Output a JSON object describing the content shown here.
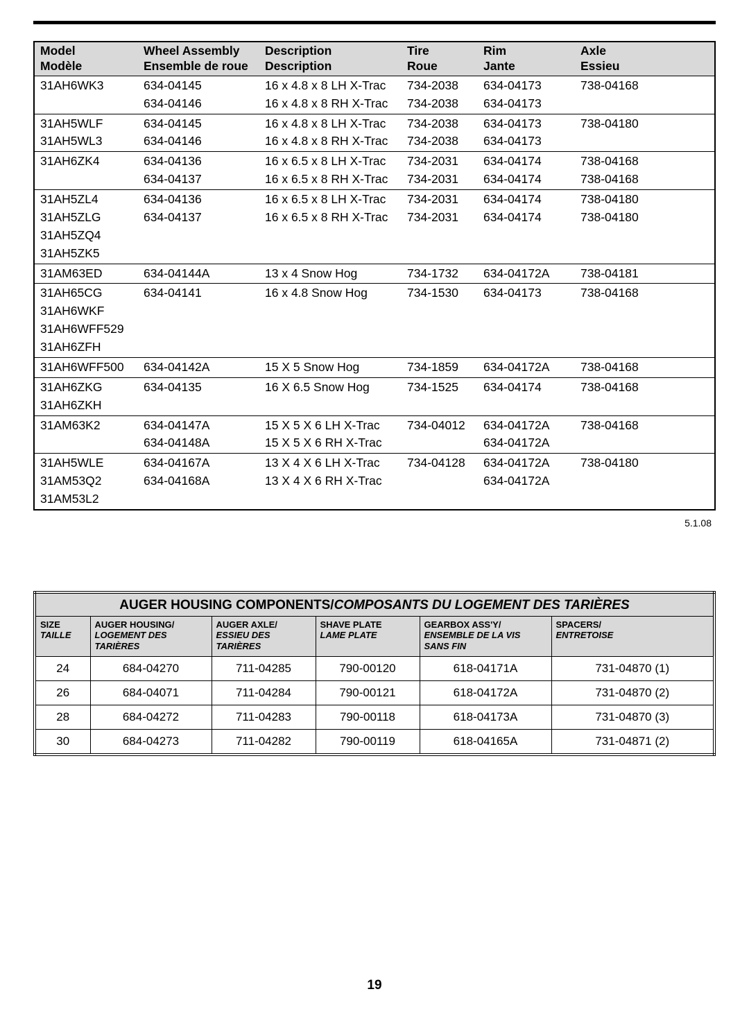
{
  "page_number": "19",
  "date_note": "5.1.08",
  "table1": {
    "headers": [
      {
        "en": "Model",
        "fr": "Modèle"
      },
      {
        "en": "Wheel Assembly",
        "fr": "Ensemble de roue"
      },
      {
        "en": "Description",
        "fr": "Description"
      },
      {
        "en": "Tire",
        "fr": "Roue"
      },
      {
        "en": "Rim",
        "fr": "Jante"
      },
      {
        "en": "Axle",
        "fr": "Essieu"
      }
    ],
    "groups": [
      {
        "rows": [
          {
            "model": "31AH6WK3",
            "wa": "634-04145",
            "desc": "16 x 4.8 x 8 LH X-Trac",
            "tire": "734-2038",
            "rim": "634-04173",
            "axle": "738-04168"
          },
          {
            "model": "",
            "wa": "634-04146",
            "desc": "16 x 4.8 x 8 RH X-Trac",
            "tire": "734-2038",
            "rim": "634-04173",
            "axle": ""
          }
        ]
      },
      {
        "rows": [
          {
            "model": "31AH5WLF",
            "wa": "634-04145",
            "desc": "16 x 4.8 x 8 LH X-Trac",
            "tire": "734-2038",
            "rim": "634-04173",
            "axle": "738-04180"
          },
          {
            "model": "31AH5WL3",
            "wa": "634-04146",
            "desc": "16 x 4.8 x 8 RH X-Trac",
            "tire": "734-2038",
            "rim": "634-04173",
            "axle": ""
          }
        ]
      },
      {
        "rows": [
          {
            "model": "31AH6ZK4",
            "wa": "634-04136",
            "desc": "16 x 6.5 x 8 LH X-Trac",
            "tire": "734-2031",
            "rim": "634-04174",
            "axle": "738-04168"
          },
          {
            "model": "",
            "wa": "634-04137",
            "desc": "16 x 6.5 x 8 RH X-Trac",
            "tire": "734-2031",
            "rim": "634-04174",
            "axle": "738-04168"
          }
        ]
      },
      {
        "rows": [
          {
            "model": "31AH5ZL4",
            "wa": "634-04136",
            "desc": "16 x 6.5 x 8 LH X-Trac",
            "tire": "734-2031",
            "rim": "634-04174",
            "axle": "738-04180"
          },
          {
            "model": "31AH5ZLG",
            "wa": "634-04137",
            "desc": "16 x 6.5 x 8 RH X-Trac",
            "tire": "734-2031",
            "rim": "634-04174",
            "axle": "738-04180"
          },
          {
            "model": "31AH5ZQ4",
            "wa": "",
            "desc": "",
            "tire": "",
            "rim": "",
            "axle": ""
          },
          {
            "model": "31AH5ZK5",
            "wa": "",
            "desc": "",
            "tire": "",
            "rim": "",
            "axle": ""
          }
        ]
      },
      {
        "rows": [
          {
            "model": "31AM63ED",
            "wa": "634-04144A",
            "desc": "13 x 4 Snow Hog",
            "tire": "734-1732",
            "rim": "634-04172A",
            "axle": "738-04181"
          }
        ]
      },
      {
        "rows": [
          {
            "model": "31AH65CG",
            "wa": "634-04141",
            "desc": "16 x 4.8 Snow Hog",
            "tire": "734-1530",
            "rim": "634-04173",
            "axle": "738-04168"
          },
          {
            "model": "31AH6WKF",
            "wa": "",
            "desc": "",
            "tire": "",
            "rim": "",
            "axle": ""
          },
          {
            "model": "31AH6WFF529",
            "wa": "",
            "desc": "",
            "tire": "",
            "rim": "",
            "axle": ""
          },
          {
            "model": "31AH6ZFH",
            "wa": "",
            "desc": "",
            "tire": "",
            "rim": "",
            "axle": ""
          }
        ]
      },
      {
        "rows": [
          {
            "model": "31AH6WFF500",
            "wa": "634-04142A",
            "desc": "15 X 5 Snow Hog",
            "tire": "734-1859",
            "rim": "634-04172A",
            "axle": "738-04168"
          }
        ]
      },
      {
        "rows": [
          {
            "model": "31AH6ZKG",
            "wa": "634-04135",
            "desc": "16 X 6.5 Snow Hog",
            "tire": "734-1525",
            "rim": "634-04174",
            "axle": "738-04168"
          },
          {
            "model": "31AH6ZKH",
            "wa": "",
            "desc": "",
            "tire": "",
            "rim": "",
            "axle": ""
          }
        ]
      },
      {
        "rows": [
          {
            "model": "31AM63K2",
            "wa": "634-04147A",
            "desc": "15 X 5 X 6 LH X-Trac",
            "tire": "734-04012",
            "rim": "634-04172A",
            "axle": "738-04168"
          },
          {
            "model": "",
            "wa": "634-04148A",
            "desc": "15 X 5 X 6 RH X-Trac",
            "tire": "",
            "rim": "634-04172A",
            "axle": ""
          }
        ]
      },
      {
        "rows": [
          {
            "model": "31AH5WLE",
            "wa": "634-04167A",
            "desc": "13 X 4 X 6 LH X-Trac",
            "tire": "734-04128",
            "rim": "634-04172A",
            "axle": "738-04180"
          },
          {
            "model": "31AM53Q2",
            "wa": "634-04168A",
            "desc": "13 X 4 X 6 RH X-Trac",
            "tire": "",
            "rim": "634-04172A",
            "axle": ""
          },
          {
            "model": "31AM53L2",
            "wa": "",
            "desc": "",
            "tire": "",
            "rim": "",
            "axle": ""
          }
        ]
      }
    ]
  },
  "table2": {
    "title_en": "AUGER HOUSING COMPONENTS/",
    "title_fr": "COMPOSANTS DU LOGEMENT DES TARIÈRES",
    "headers": [
      {
        "en": "SIZE",
        "fr": "TAILLE"
      },
      {
        "en": "AUGER HOUSING/",
        "fr": "LOGEMENT DES TARIÈRES"
      },
      {
        "en": "AUGER AXLE/",
        "fr": "ESSIEU DES TARIÈRES"
      },
      {
        "en": "SHAVE PLATE",
        "fr": "LAME PLATE"
      },
      {
        "en": "GEARBOX ASS'Y/",
        "fr": "ENSEMBLE DE LA VIS SANS FIN"
      },
      {
        "en": "SPACERS/",
        "fr": "ENTRETOISE"
      }
    ],
    "rows": [
      {
        "size": "24",
        "ah": "684-04270",
        "ax": "711-04285",
        "sp": "790-00120",
        "gb": "618-04171A",
        "spc": "731-04870 (1)"
      },
      {
        "size": "26",
        "ah": "684-04071",
        "ax": "711-04284",
        "sp": "790-00121",
        "gb": "618-04172A",
        "spc": "731-04870 (2)"
      },
      {
        "size": "28",
        "ah": "684-04272",
        "ax": "711-04283",
        "sp": "790-00118",
        "gb": "618-04173A",
        "spc": "731-04870 (3)"
      },
      {
        "size": "30",
        "ah": "684-04273",
        "ax": "711-04282",
        "sp": "790-00119",
        "gb": "618-04165A",
        "spc": "731-04871 (2)"
      }
    ]
  }
}
